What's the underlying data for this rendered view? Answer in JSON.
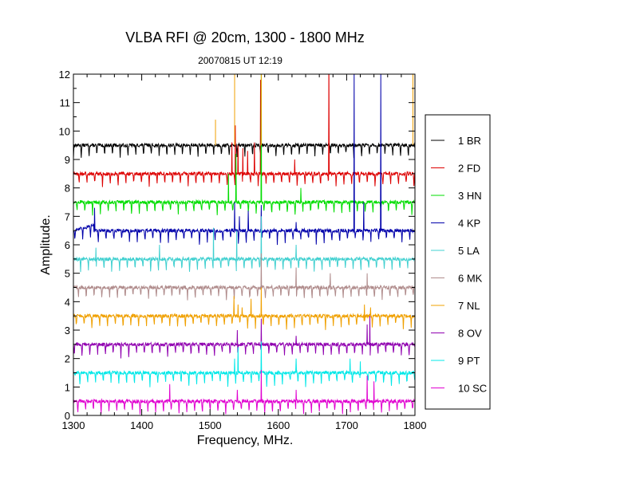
{
  "chart_data": {
    "type": "line",
    "title": "VLBA RFI @ 20cm, 1300 - 1800 MHz",
    "subtitle": "20070815   UT 12:19",
    "xlabel": "Frequency, MHz.",
    "ylabel": "Amplitude.",
    "xlim": [
      1300,
      1800
    ],
    "ylim": [
      0,
      12
    ],
    "x_ticks": [
      "1300",
      "1400",
      "1500",
      "1600",
      "1700",
      "1800"
    ],
    "y_ticks": [
      "0",
      "1",
      "2",
      "3",
      "4",
      "5",
      "6",
      "7",
      "8",
      "9",
      "10",
      "11",
      "12"
    ],
    "legend_position": "right",
    "grid": false,
    "series": [
      {
        "name": "1 BR",
        "color": "#000000",
        "baseline": 9.5,
        "spikes": []
      },
      {
        "name": "2 FD",
        "color": "#dd0000",
        "baseline": 8.5,
        "spikes": [
          [
            1532,
            9.6
          ],
          [
            1537,
            10.2
          ],
          [
            1541,
            9.5
          ],
          [
            1548,
            9.4
          ],
          [
            1555,
            9.3
          ],
          [
            1565,
            9.6
          ],
          [
            1574,
            11.8
          ],
          [
            1624,
            9.0
          ],
          [
            1674,
            12.0
          ]
        ]
      },
      {
        "name": "3 HN",
        "color": "#00dd00",
        "baseline": 7.5,
        "spikes": [
          [
            1527,
            8.5
          ],
          [
            1538,
            9.2
          ],
          [
            1575,
            12.0
          ],
          [
            1633,
            8.0
          ]
        ]
      },
      {
        "name": "4 KP",
        "color": "#0000aa",
        "baseline": 6.5,
        "spikes": [
          [
            1331,
            7.3
          ],
          [
            1536,
            7.5
          ],
          [
            1543,
            7.0
          ],
          [
            1556,
            7.2
          ],
          [
            1575,
            7.4
          ],
          [
            1626,
            6.8
          ],
          [
            1711,
            12.0
          ],
          [
            1725,
            7.5
          ],
          [
            1750,
            12.0
          ]
        ]
      },
      {
        "name": "5 LA",
        "color": "#40d0d0",
        "baseline": 5.5,
        "spikes": [
          [
            1333,
            5.9
          ],
          [
            1426,
            6.0
          ],
          [
            1505,
            6.6
          ],
          [
            1539,
            6.5
          ],
          [
            1575,
            7.0
          ],
          [
            1626,
            6.0
          ]
        ]
      },
      {
        "name": "6 MK",
        "color": "#b08c8c",
        "baseline": 4.5,
        "spikes": [
          [
            1575,
            5.7
          ],
          [
            1626,
            5.2
          ],
          [
            1676,
            5.0
          ],
          [
            1730,
            5.0
          ]
        ]
      },
      {
        "name": "7 NL",
        "color": "#f0a000",
        "baseline": 3.5,
        "spikes": [
          [
            1535,
            4.2
          ],
          [
            1541,
            3.9
          ],
          [
            1547,
            3.8
          ],
          [
            1560,
            4.1
          ],
          [
            1575,
            4.5
          ],
          [
            1726,
            3.9
          ],
          [
            1735,
            3.8
          ]
        ]
      },
      {
        "name": "8 OV",
        "color": "#9000b0",
        "baseline": 2.5,
        "spikes": [
          [
            1540,
            3.0
          ],
          [
            1575,
            3.4
          ],
          [
            1626,
            2.8
          ],
          [
            1730,
            3.2
          ],
          [
            1734,
            3.5
          ]
        ]
      },
      {
        "name": "9 PT",
        "color": "#00e8e8",
        "baseline": 1.5,
        "spikes": [
          [
            1536,
            2.0
          ],
          [
            1541,
            2.4
          ],
          [
            1575,
            2.6
          ],
          [
            1626,
            2.0
          ],
          [
            1705,
            2.0
          ],
          [
            1720,
            1.9
          ]
        ]
      },
      {
        "name": "10 SC",
        "color": "#e000d0",
        "baseline": 0.5,
        "spikes": [
          [
            1441,
            1.1
          ],
          [
            1540,
            0.9
          ],
          [
            1575,
            1.6
          ],
          [
            1626,
            0.9
          ],
          [
            1730,
            1.4
          ],
          [
            1740,
            1.2
          ]
        ]
      }
    ],
    "top_band_spikes": [
      {
        "color": "#f0a000",
        "x": 1536,
        "y": 12.0
      },
      {
        "color": "#f0a000",
        "x": 1575,
        "y": 12.0
      },
      {
        "color": "#f0a000",
        "x": 1797,
        "y": 12.0
      },
      {
        "color": "#f0a000",
        "x": 1508,
        "y": 10.4
      },
      {
        "color": "#dd0000",
        "x": 1674,
        "y": 12.0
      }
    ]
  }
}
